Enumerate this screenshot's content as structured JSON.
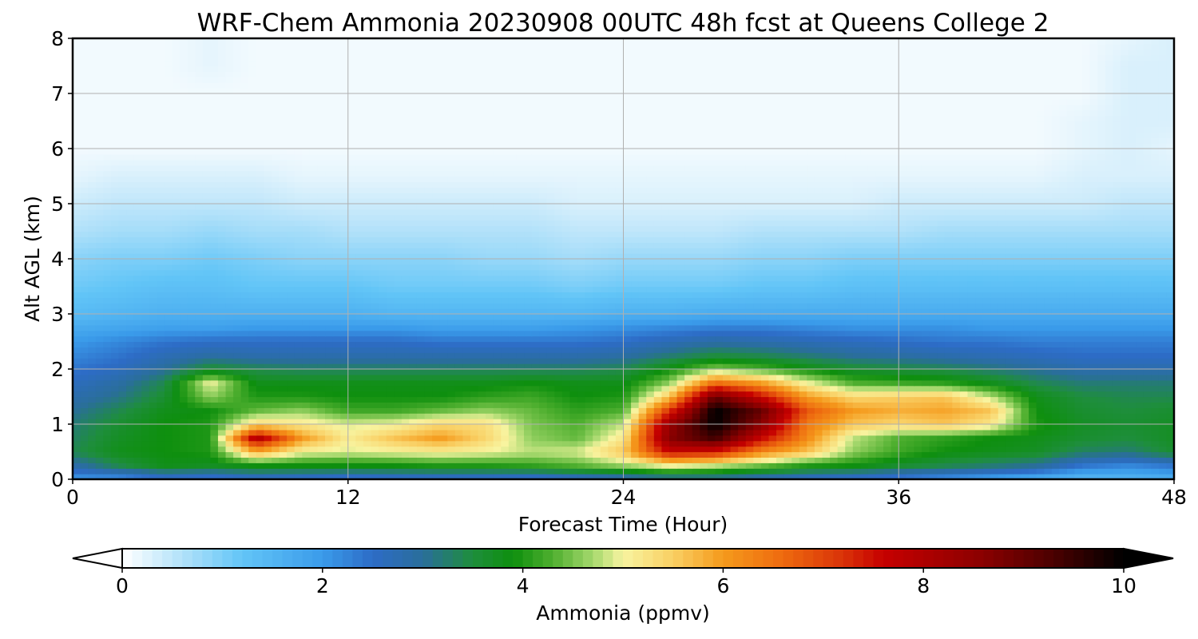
{
  "chart_data": {
    "type": "heatmap",
    "title": "WRF-Chem Ammonia  20230908 00UTC 48h fcst at Queens College 2",
    "xlabel": "Forecast Time (Hour)",
    "ylabel": "Alt AGL (km)",
    "xlim": [
      0,
      48
    ],
    "ylim": [
      0,
      8
    ],
    "xticks": [
      0,
      12,
      24,
      36,
      48
    ],
    "yticks": [
      0,
      1,
      2,
      3,
      4,
      5,
      6,
      7,
      8
    ],
    "grid": true,
    "colorbar": {
      "label": "Ammonia  (ppmv)",
      "min": 0,
      "max": 10,
      "ticks": [
        0,
        2,
        4,
        6,
        8,
        10
      ],
      "extend": "both",
      "orientation": "horizontal",
      "colormap": [
        [
          0,
          "#ffffff"
        ],
        [
          0.5,
          "#bfe6fa"
        ],
        [
          1.2,
          "#62c5f7"
        ],
        [
          2.0,
          "#3a9bea"
        ],
        [
          2.5,
          "#2d6cc6"
        ],
        [
          3.0,
          "#2a6e9b"
        ],
        [
          3.5,
          "#1e8e3c"
        ],
        [
          3.9,
          "#0e8f0e"
        ],
        [
          4.3,
          "#4faf2f"
        ],
        [
          4.7,
          "#a5d86d"
        ],
        [
          5.0,
          "#f8f4a0"
        ],
        [
          5.5,
          "#f9cf63"
        ],
        [
          6.0,
          "#f59a1c"
        ],
        [
          6.6,
          "#ee6a0f"
        ],
        [
          7.2,
          "#d93208"
        ],
        [
          7.6,
          "#c60000"
        ],
        [
          8.6,
          "#8a0000"
        ],
        [
          9.3,
          "#4a0000"
        ],
        [
          10,
          "#000000"
        ]
      ]
    },
    "x": [
      0,
      2,
      4,
      6,
      8,
      10,
      12,
      14,
      16,
      18,
      20,
      22,
      24,
      26,
      28,
      30,
      32,
      34,
      36,
      38,
      40,
      42,
      44,
      46,
      48
    ],
    "y": [
      0,
      0.25,
      0.5,
      0.75,
      1.0,
      1.25,
      1.5,
      1.75,
      2.0,
      2.25,
      2.5,
      2.75,
      3.0,
      3.5,
      4.0,
      4.5,
      5.0,
      5.5,
      6.0,
      6.5,
      7.0,
      7.5,
      8.0
    ],
    "z": [
      [
        2.0,
        2.0,
        2.3,
        2.2,
        2.4,
        2.3,
        2.2,
        2.3,
        2.3,
        2.3,
        2.2,
        2.4,
        2.6,
        2.8,
        2.8,
        2.6,
        2.4,
        2.3,
        2.2,
        2.0,
        1.8,
        1.6,
        1.4,
        1.5,
        1.6
      ],
      [
        2.8,
        3.4,
        3.8,
        3.7,
        3.9,
        3.9,
        3.9,
        3.9,
        4.0,
        4.0,
        4.1,
        4.3,
        4.6,
        5.0,
        4.8,
        4.4,
        4.0,
        3.9,
        3.6,
        3.4,
        3.2,
        3.0,
        2.4,
        2.2,
        2.4
      ],
      [
        3.4,
        3.8,
        3.9,
        4.0,
        5.8,
        5.0,
        4.9,
        5.0,
        5.1,
        5.0,
        4.8,
        4.9,
        5.6,
        7.6,
        7.4,
        6.2,
        5.6,
        4.6,
        4.2,
        3.9,
        3.8,
        3.7,
        3.3,
        3.2,
        3.6
      ],
      [
        3.3,
        3.7,
        3.9,
        4.0,
        8.0,
        6.0,
        5.1,
        5.6,
        6.0,
        5.4,
        4.6,
        4.4,
        5.2,
        8.6,
        9.4,
        7.6,
        6.2,
        4.8,
        4.3,
        4.1,
        3.9,
        3.8,
        3.6,
        3.5,
        3.7
      ],
      [
        3.2,
        3.6,
        3.9,
        4.0,
        5.4,
        5.2,
        4.9,
        5.0,
        5.4,
        5.3,
        4.5,
        4.3,
        4.8,
        8.4,
        10.0,
        8.6,
        6.4,
        5.6,
        5.4,
        5.6,
        5.2,
        4.0,
        3.7,
        3.6,
        3.7
      ],
      [
        3.0,
        3.4,
        3.8,
        3.9,
        4.4,
        4.6,
        4.2,
        4.2,
        4.4,
        4.6,
        4.4,
        4.1,
        4.3,
        7.2,
        10.0,
        9.0,
        6.8,
        6.0,
        5.8,
        5.9,
        5.6,
        3.9,
        3.6,
        3.5,
        3.6
      ],
      [
        2.8,
        3.1,
        3.6,
        4.6,
        4.0,
        4.0,
        3.9,
        3.9,
        3.9,
        4.1,
        4.2,
        3.9,
        4.0,
        5.6,
        9.0,
        7.6,
        6.0,
        5.4,
        5.5,
        5.6,
        4.8,
        3.8,
        3.5,
        3.4,
        3.4
      ],
      [
        2.6,
        2.9,
        3.4,
        5.0,
        3.8,
        3.8,
        3.8,
        3.8,
        3.8,
        3.8,
        3.9,
        3.8,
        3.8,
        4.6,
        6.6,
        6.0,
        5.0,
        4.3,
        4.2,
        4.1,
        3.8,
        3.4,
        3.2,
        3.2,
        3.2
      ],
      [
        2.4,
        2.6,
        3.0,
        3.6,
        3.4,
        3.3,
        3.3,
        3.3,
        3.3,
        3.3,
        3.3,
        3.3,
        3.4,
        3.9,
        4.6,
        4.3,
        3.9,
        3.6,
        3.5,
        3.4,
        3.2,
        3.0,
        2.8,
        2.8,
        2.8
      ],
      [
        2.2,
        2.4,
        2.7,
        2.9,
        2.8,
        2.8,
        2.8,
        2.8,
        2.8,
        2.8,
        2.8,
        2.8,
        2.9,
        3.2,
        3.5,
        3.4,
        3.2,
        3.0,
        2.9,
        2.8,
        2.7,
        2.6,
        2.5,
        2.5,
        2.5
      ],
      [
        2.0,
        2.2,
        2.4,
        2.5,
        2.5,
        2.5,
        2.5,
        2.5,
        2.4,
        2.4,
        2.4,
        2.4,
        2.5,
        2.7,
        2.9,
        2.8,
        2.7,
        2.6,
        2.5,
        2.4,
        2.4,
        2.3,
        2.3,
        2.3,
        2.3
      ],
      [
        1.7,
        1.8,
        1.9,
        1.9,
        2.0,
        2.0,
        2.0,
        2.0,
        1.9,
        1.9,
        1.9,
        2.0,
        2.1,
        2.2,
        2.3,
        2.3,
        2.2,
        2.1,
        2.1,
        2.1,
        2.0,
        2.0,
        2.0,
        2.0,
        2.0
      ],
      [
        1.4,
        1.5,
        1.6,
        1.6,
        1.6,
        1.6,
        1.6,
        1.5,
        1.5,
        1.5,
        1.5,
        1.5,
        1.6,
        1.6,
        1.7,
        1.7,
        1.7,
        1.7,
        1.7,
        1.7,
        1.7,
        1.7,
        1.7,
        1.7,
        1.7
      ],
      [
        1.1,
        1.2,
        1.3,
        1.3,
        1.2,
        1.2,
        1.2,
        1.1,
        1.1,
        1.1,
        1.1,
        1.0,
        1.1,
        1.1,
        1.1,
        1.2,
        1.2,
        1.3,
        1.3,
        1.3,
        1.3,
        1.3,
        1.3,
        1.3,
        1.3
      ],
      [
        0.9,
        1.0,
        1.0,
        1.1,
        1.0,
        0.9,
        0.9,
        0.9,
        0.9,
        0.8,
        0.8,
        0.7,
        0.8,
        0.8,
        0.8,
        0.9,
        0.9,
        1.0,
        1.0,
        1.0,
        1.0,
        1.0,
        1.0,
        1.0,
        1.0
      ],
      [
        0.6,
        0.7,
        0.7,
        0.8,
        0.7,
        0.7,
        0.6,
        0.6,
        0.6,
        0.6,
        0.6,
        0.5,
        0.5,
        0.5,
        0.5,
        0.6,
        0.6,
        0.6,
        0.6,
        0.7,
        0.7,
        0.7,
        0.7,
        0.7,
        0.7
      ],
      [
        0.4,
        0.5,
        0.5,
        0.5,
        0.5,
        0.4,
        0.4,
        0.4,
        0.4,
        0.4,
        0.4,
        0.3,
        0.3,
        0.3,
        0.3,
        0.3,
        0.3,
        0.3,
        0.4,
        0.4,
        0.4,
        0.4,
        0.4,
        0.5,
        0.5
      ],
      [
        0.2,
        0.3,
        0.3,
        0.3,
        0.3,
        0.2,
        0.2,
        0.2,
        0.2,
        0.2,
        0.2,
        0.2,
        0.2,
        0.2,
        0.2,
        0.2,
        0.2,
        0.2,
        0.2,
        0.2,
        0.2,
        0.2,
        0.3,
        0.3,
        0.3
      ],
      [
        0.1,
        0.1,
        0.1,
        0.1,
        0.1,
        0.1,
        0.1,
        0.1,
        0.1,
        0.1,
        0.1,
        0.1,
        0.1,
        0.1,
        0.1,
        0.1,
        0.1,
        0.1,
        0.1,
        0.1,
        0.1,
        0.1,
        0.2,
        0.3,
        0.2
      ],
      [
        0.1,
        0.1,
        0.1,
        0.1,
        0.1,
        0.1,
        0.1,
        0.1,
        0.1,
        0.1,
        0.1,
        0.1,
        0.1,
        0.1,
        0.1,
        0.1,
        0.1,
        0.1,
        0.1,
        0.1,
        0.1,
        0.1,
        0.2,
        0.3,
        0.3
      ],
      [
        0.1,
        0.1,
        0.1,
        0.1,
        0.1,
        0.1,
        0.1,
        0.1,
        0.1,
        0.1,
        0.1,
        0.1,
        0.1,
        0.1,
        0.1,
        0.1,
        0.1,
        0.1,
        0.1,
        0.1,
        0.1,
        0.1,
        0.1,
        0.3,
        0.3
      ],
      [
        0.1,
        0.1,
        0.1,
        0.2,
        0.1,
        0.1,
        0.1,
        0.1,
        0.1,
        0.1,
        0.1,
        0.1,
        0.1,
        0.1,
        0.1,
        0.1,
        0.1,
        0.1,
        0.1,
        0.1,
        0.1,
        0.1,
        0.1,
        0.3,
        0.3
      ],
      [
        0.1,
        0.1,
        0.1,
        0.2,
        0.1,
        0.1,
        0.1,
        0.1,
        0.1,
        0.1,
        0.1,
        0.1,
        0.1,
        0.1,
        0.1,
        0.1,
        0.1,
        0.1,
        0.1,
        0.1,
        0.1,
        0.1,
        0.1,
        0.2,
        0.3
      ]
    ]
  }
}
